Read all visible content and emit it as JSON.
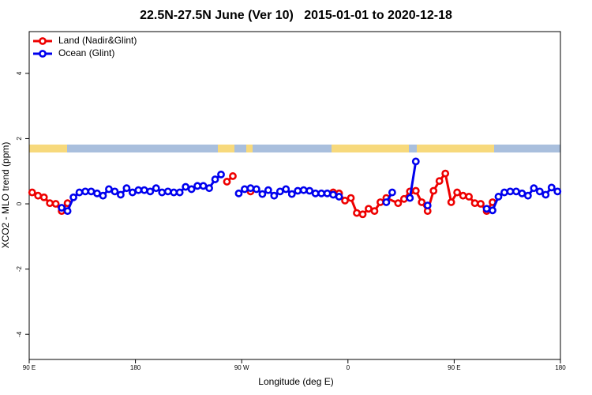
{
  "chart_data": {
    "type": "line",
    "title": "22.5N-27.5N June (Ver 10)   2015-01-01 to 2020-12-18",
    "x_label": "Longitude (deg E)",
    "y_label": "XCO2 - MLO trend (ppm)",
    "xlim": [
      90,
      540
    ],
    "ylim": [
      -4.77,
      5.28
    ],
    "xticks": [
      {
        "value": 90,
        "label": "90 E"
      },
      180,
      {
        "value": 270,
        "label": "90 W"
      },
      {
        "value": 360,
        "label": "0"
      },
      {
        "value": 450,
        "label": "90 E"
      },
      {
        "value": 540,
        "label": "180"
      }
    ],
    "yticks": [
      -4,
      -2,
      0,
      2,
      4
    ],
    "legend": "top-left",
    "series": [
      {
        "name": "Land (Nadir&Glint)",
        "color": "#ee0000",
        "x": [
          92.5,
          97.5,
          102.5,
          107.5,
          112.5,
          117.5,
          122.5,
          null,
          257.5,
          262.5,
          null,
          277.5,
          null,
          347.5,
          352.5,
          357.5,
          362.5,
          367.5,
          372.5,
          377.5,
          382.5,
          387.5,
          392.5,
          402.5,
          407.5,
          412.5,
          417.5,
          422.5,
          427.5,
          432.5,
          437.5,
          442.5,
          447.5,
          452.5,
          457.5,
          462.5,
          467.5,
          472.5,
          477.5,
          482.5
        ],
        "values": [
          0.35,
          0.25,
          0.2,
          0.02,
          0.0,
          -0.22,
          0.02,
          null,
          0.68,
          0.85,
          null,
          0.38,
          null,
          0.35,
          0.32,
          0.1,
          0.18,
          -0.28,
          -0.32,
          -0.15,
          -0.22,
          0.05,
          0.18,
          0.02,
          0.15,
          0.38,
          0.4,
          0.05,
          -0.22,
          0.4,
          0.7,
          0.93,
          0.05,
          0.35,
          0.25,
          0.22,
          0.02,
          0.0,
          -0.22,
          0.05
        ]
      },
      {
        "name": "Ocean (Glint)",
        "color": "#0000ee",
        "x": [
          117.5,
          122.5,
          127.5,
          132.5,
          137.5,
          142.5,
          147.5,
          152.5,
          157.5,
          162.5,
          167.5,
          172.5,
          177.5,
          182.5,
          187.5,
          192.5,
          197.5,
          202.5,
          207.5,
          212.5,
          217.5,
          222.5,
          227.5,
          232.5,
          237.5,
          242.5,
          247.5,
          252.5,
          null,
          267.5,
          272.5,
          277.5,
          282.5,
          287.5,
          292.5,
          297.5,
          302.5,
          307.5,
          312.5,
          317.5,
          322.5,
          327.5,
          332.5,
          337.5,
          342.5,
          347.5,
          352.5,
          null,
          392.5,
          397.5,
          null,
          412.5,
          417.5,
          null,
          427.5,
          null,
          477.5,
          482.5,
          487.5,
          492.5,
          497.5,
          502.5,
          507.5,
          512.5,
          517.5,
          522.5,
          527.5,
          532.5,
          537.5
        ],
        "values": [
          -0.12,
          -0.22,
          0.2,
          0.35,
          0.38,
          0.38,
          0.32,
          0.25,
          0.45,
          0.38,
          0.28,
          0.48,
          0.35,
          0.42,
          0.42,
          0.38,
          0.48,
          0.35,
          0.38,
          0.35,
          0.35,
          0.52,
          0.45,
          0.55,
          0.55,
          0.48,
          0.75,
          0.9,
          null,
          0.32,
          0.45,
          0.48,
          0.45,
          0.3,
          0.42,
          0.25,
          0.38,
          0.45,
          0.3,
          0.4,
          0.42,
          0.4,
          0.32,
          0.32,
          0.32,
          0.28,
          0.22,
          null,
          0.05,
          0.35,
          null,
          0.18,
          1.3,
          null,
          -0.05,
          null,
          -0.15,
          -0.2,
          0.22,
          0.35,
          0.38,
          0.38,
          0.32,
          0.25,
          0.48,
          0.38,
          0.28,
          0.5,
          0.38
        ]
      }
    ]
  }
}
